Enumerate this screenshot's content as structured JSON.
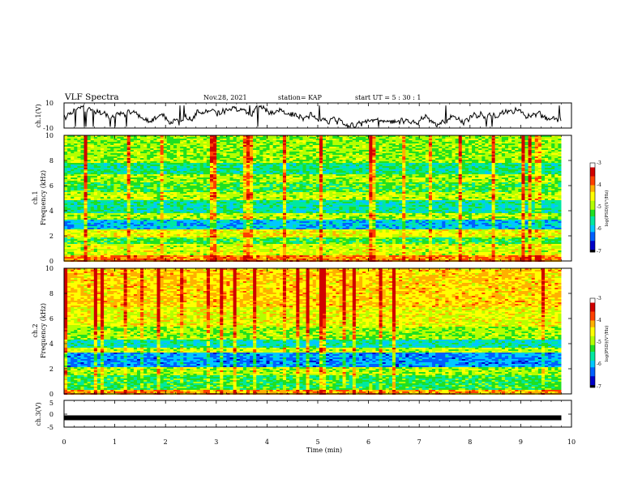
{
  "header": {
    "title": "VLF Spectra",
    "date": "Nov.28, 2021",
    "station": "station= KAP",
    "start": "start  UT =  5 : 30 : 1"
  },
  "chart_data": [
    {
      "type": "line",
      "ylabel": "ch.1(V)",
      "ylim": [
        -10,
        10
      ],
      "yticks": [
        "10",
        "-10"
      ],
      "xlim": [
        0,
        10
      ],
      "x_extent": [
        0,
        9.8
      ],
      "description_level": 0
    },
    {
      "type": "heatmap",
      "ylabel_line1": "ch.1",
      "ylabel_line2": "Frequency (kHz)",
      "ylim": [
        0,
        10
      ],
      "yticks": [
        "0",
        "2",
        "4",
        "6",
        "8",
        "10"
      ],
      "xlim": [
        0,
        10
      ],
      "x_extent": [
        0,
        9.8
      ],
      "colorbar": {
        "label": "log(PSD)(V²/Hz)",
        "ticks": [
          "-3",
          "-4",
          "-5",
          "-6",
          "-7"
        ],
        "range": [
          -7,
          -3
        ]
      },
      "bands_khz": [
        {
          "from": 0.0,
          "to": 0.5,
          "level": -3.6
        },
        {
          "from": 0.5,
          "to": 1.4,
          "level": -4.4
        },
        {
          "from": 1.4,
          "to": 2.0,
          "level": -5.0
        },
        {
          "from": 2.0,
          "to": 2.6,
          "level": -4.3
        },
        {
          "from": 2.6,
          "to": 3.4,
          "level": -5.8
        },
        {
          "from": 3.4,
          "to": 3.9,
          "level": -4.6
        },
        {
          "from": 3.9,
          "to": 4.9,
          "level": -5.4
        },
        {
          "from": 4.9,
          "to": 5.6,
          "level": -4.5
        },
        {
          "from": 5.6,
          "to": 6.3,
          "level": -5.0
        },
        {
          "from": 6.3,
          "to": 7.0,
          "level": -4.6
        },
        {
          "from": 7.0,
          "to": 7.9,
          "level": -5.3
        },
        {
          "from": 7.9,
          "to": 10.0,
          "level": -4.7
        }
      ]
    },
    {
      "type": "heatmap",
      "ylabel_line1": "ch.2",
      "ylabel_line2": "Frequency (kHz)",
      "ylim": [
        0,
        10
      ],
      "yticks": [
        "0",
        "2",
        "4",
        "6",
        "8",
        "10"
      ],
      "xlim": [
        0,
        10
      ],
      "x_extent": [
        0,
        9.8
      ],
      "colorbar": {
        "label": "log(PSD)(V²/Hz)",
        "ticks": [
          "-3",
          "-4",
          "-5",
          "-6",
          "-7"
        ],
        "range": [
          -7,
          -3
        ]
      },
      "bands_khz": [
        {
          "from": 0.0,
          "to": 0.4,
          "level": -3.8
        },
        {
          "from": 0.4,
          "to": 1.6,
          "level": -5.1
        },
        {
          "from": 1.6,
          "to": 2.2,
          "level": -4.6
        },
        {
          "from": 2.2,
          "to": 3.3,
          "level": -6.0
        },
        {
          "from": 3.3,
          "to": 3.7,
          "level": -4.5
        },
        {
          "from": 3.7,
          "to": 4.4,
          "level": -5.5
        },
        {
          "from": 4.4,
          "to": 5.4,
          "level": -4.7
        },
        {
          "from": 5.4,
          "to": 7.0,
          "level": -4.3
        },
        {
          "from": 7.0,
          "to": 10.0,
          "level": -4.0
        }
      ]
    },
    {
      "type": "line",
      "ylabel": "ch.3(V)",
      "ylim": [
        -5,
        5
      ],
      "yticks": [
        "5",
        "0",
        "-5"
      ],
      "xlim": [
        0,
        10
      ],
      "x_extent": [
        0,
        9.8
      ],
      "level": -1.5,
      "xlabel": "Time  (min)",
      "xticks": [
        "0",
        "1",
        "2",
        "3",
        "4",
        "5",
        "6",
        "7",
        "8",
        "9",
        "10"
      ]
    }
  ],
  "colors": {
    "colormap": [
      "#000000",
      "#0000c8",
      "#0060ff",
      "#00c8ff",
      "#00e8a0",
      "#20e020",
      "#b4ff00",
      "#ffff00",
      "#ffb000",
      "#ff4000",
      "#d00000",
      "#ffffff"
    ]
  }
}
